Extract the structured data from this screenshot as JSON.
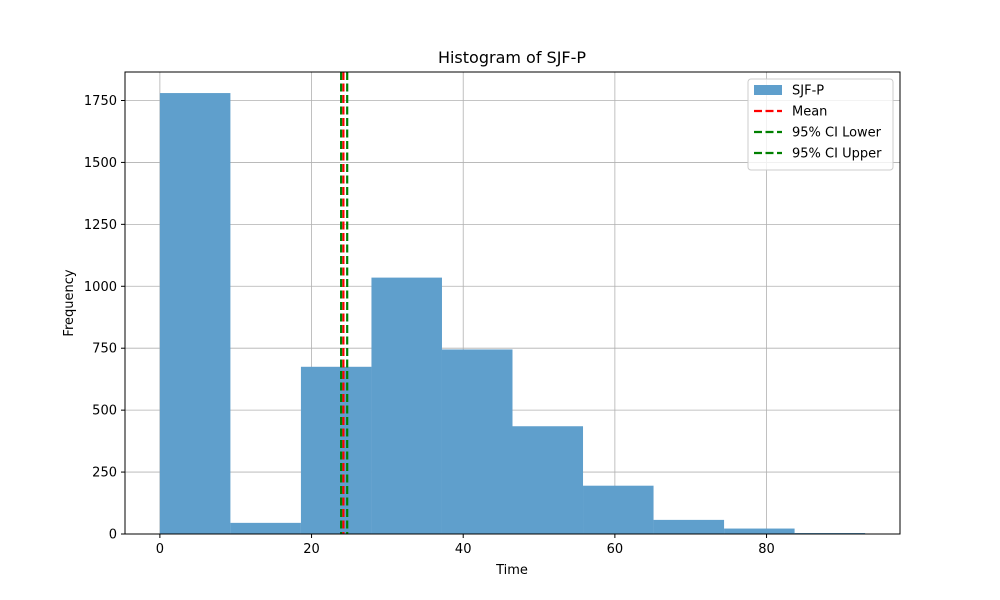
{
  "chart_data": {
    "type": "bar",
    "title": "Histogram of SJF-P",
    "xlabel": "Time",
    "ylabel": "Frequency",
    "xlim": [
      -4.6,
      97.6
    ],
    "ylim": [
      0,
      1865
    ],
    "xticks": [
      0,
      20,
      40,
      60,
      80
    ],
    "yticks": [
      0,
      250,
      500,
      750,
      1000,
      1250,
      1500,
      1750
    ],
    "grid": true,
    "legend_position": "top-right",
    "bins": [
      {
        "x0": 0.0,
        "x1": 9.3,
        "count": 1780
      },
      {
        "x0": 9.3,
        "x1": 18.6,
        "count": 45
      },
      {
        "x0": 18.6,
        "x1": 27.9,
        "count": 675
      },
      {
        "x0": 27.9,
        "x1": 37.2,
        "count": 1035
      },
      {
        "x0": 37.2,
        "x1": 46.5,
        "count": 745
      },
      {
        "x0": 46.5,
        "x1": 55.8,
        "count": 435
      },
      {
        "x0": 55.8,
        "x1": 65.1,
        "count": 195
      },
      {
        "x0": 65.1,
        "x1": 74.4,
        "count": 57
      },
      {
        "x0": 74.4,
        "x1": 83.7,
        "count": 22
      },
      {
        "x0": 83.7,
        "x1": 93.0,
        "count": 4
      }
    ],
    "bar_color": "#5f9fcc",
    "lines": [
      {
        "name": "Mean",
        "x": 24.2,
        "color": "#ff0000",
        "style": "dashed"
      },
      {
        "name": "95% CI Lower",
        "x": 23.9,
        "color": "#008000",
        "style": "dashed"
      },
      {
        "name": "95% CI Upper",
        "x": 24.7,
        "color": "#008000",
        "style": "dashed"
      }
    ],
    "legend": [
      {
        "label": "SJF-P",
        "kind": "patch",
        "color": "#5f9fcc"
      },
      {
        "label": "Mean",
        "kind": "line",
        "color": "#ff0000"
      },
      {
        "label": "95% CI Lower",
        "kind": "line",
        "color": "#008000"
      },
      {
        "label": "95% CI Upper",
        "kind": "line",
        "color": "#008000"
      }
    ]
  }
}
